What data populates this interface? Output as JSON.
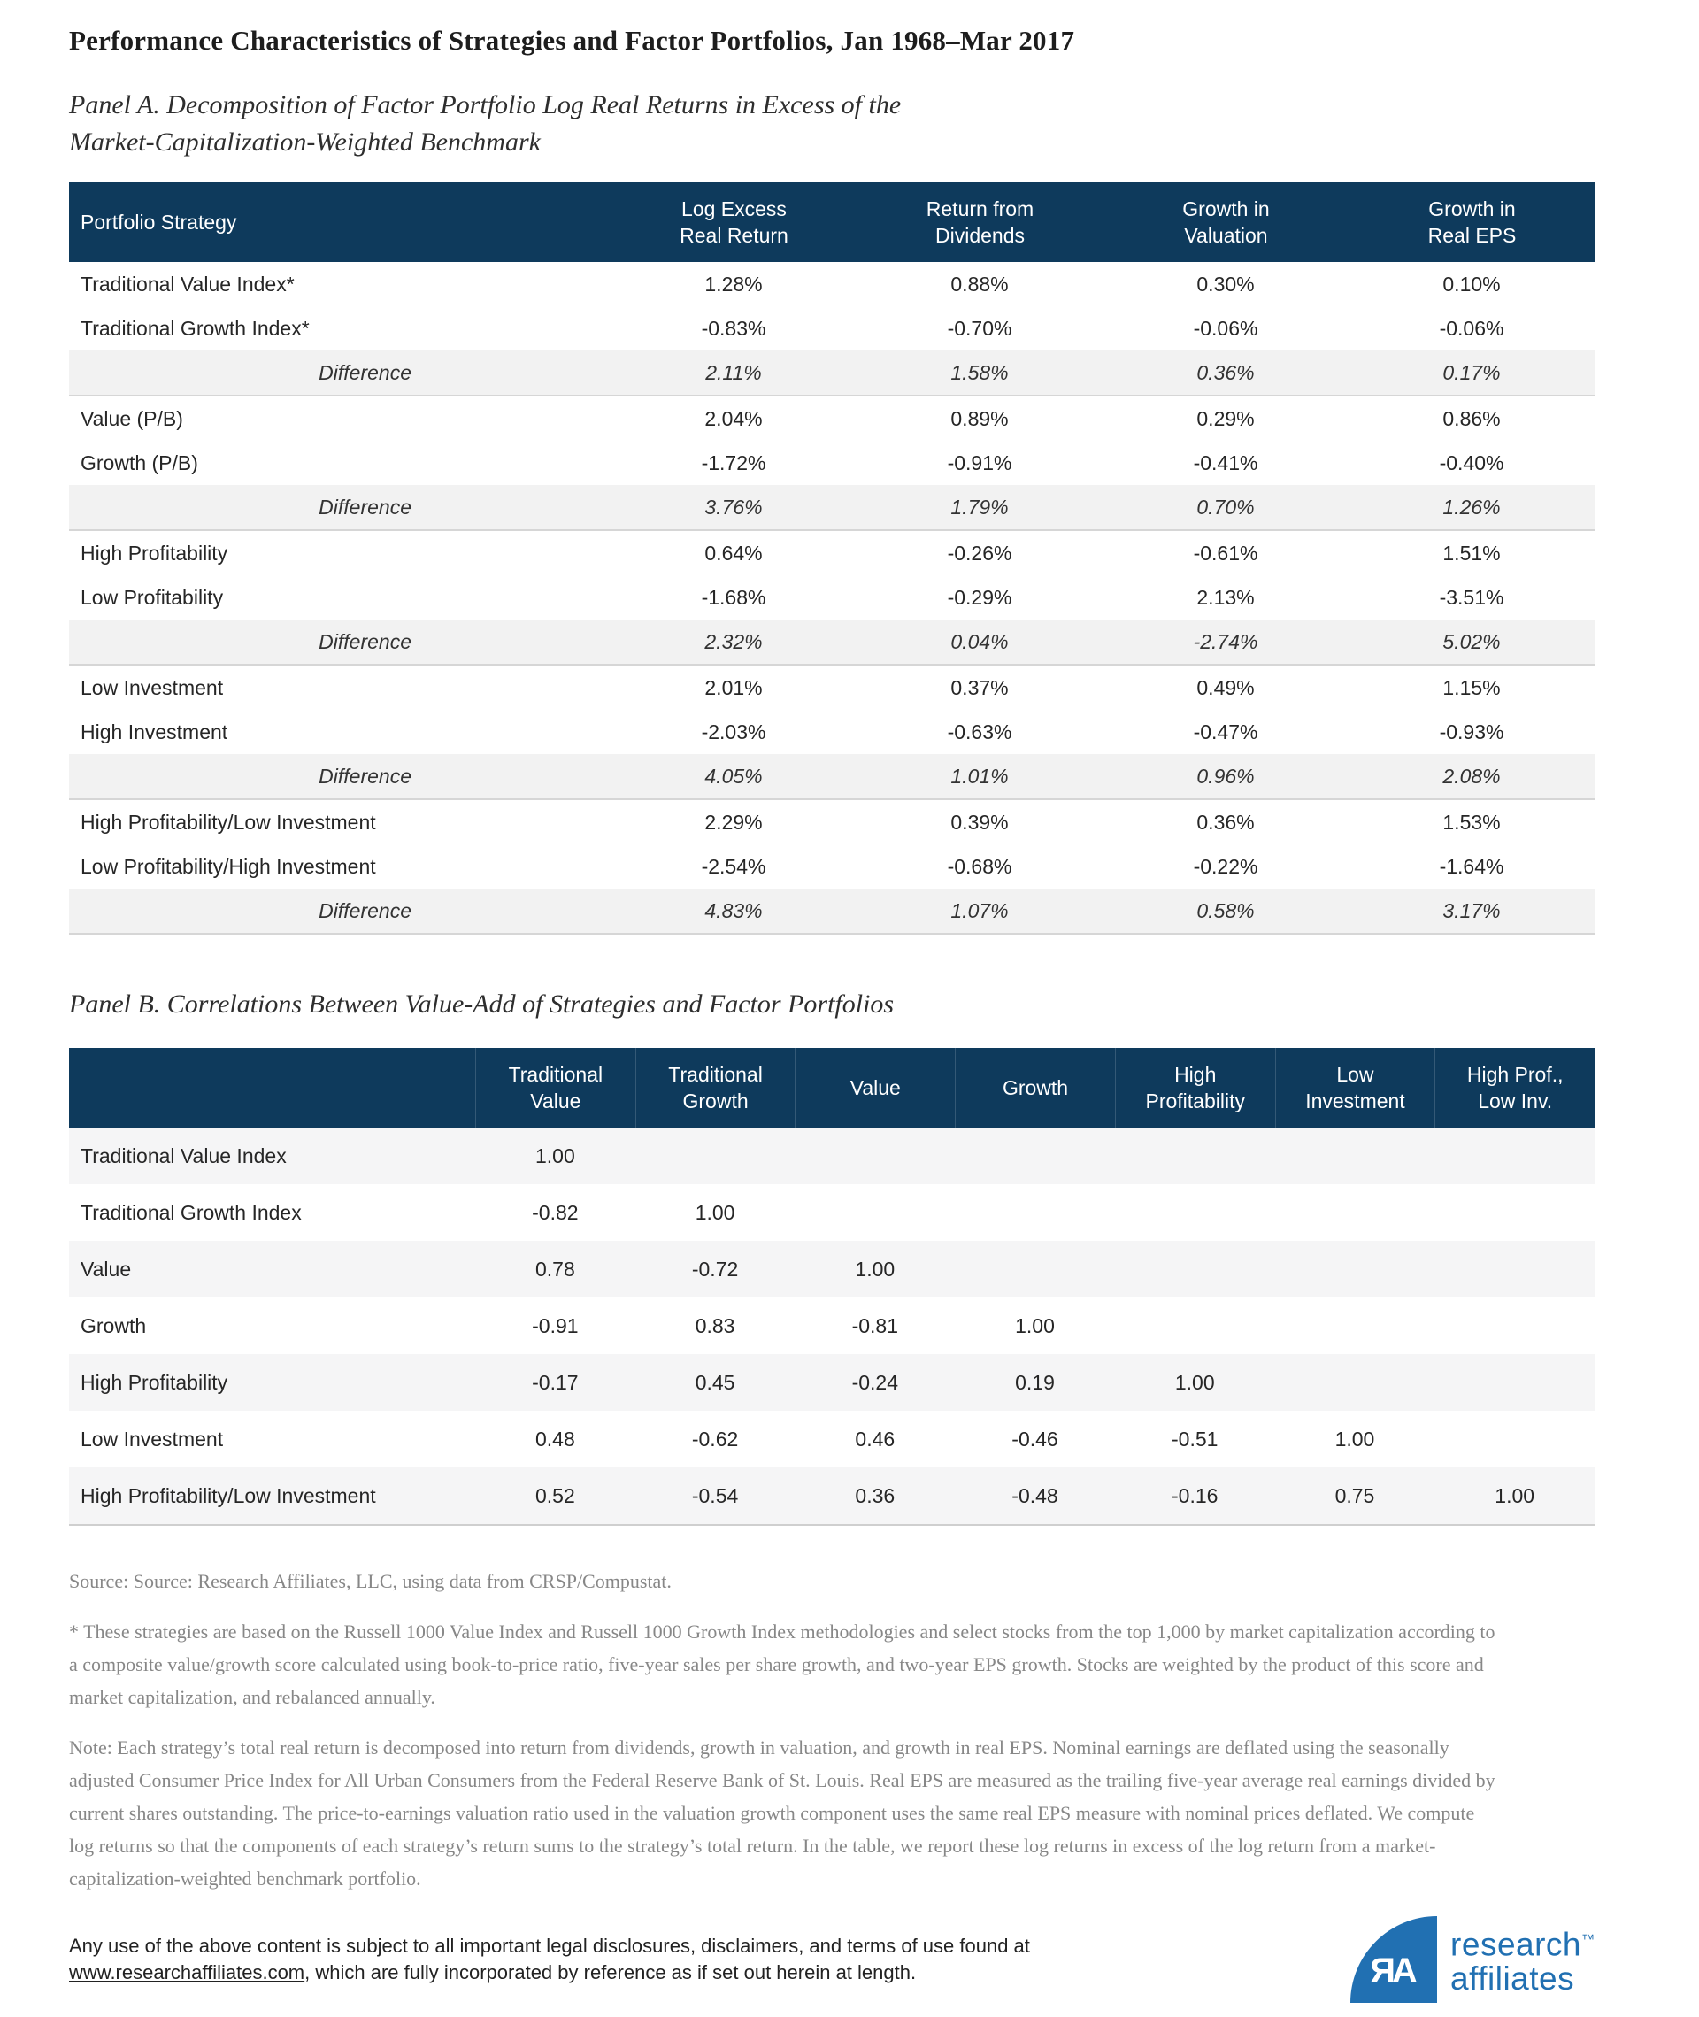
{
  "page": {
    "title": "Performance Characteristics of Strategies and Factor Portfolios, Jan 1968–Mar 2017"
  },
  "panel_a": {
    "heading_line1": "Panel A. Decomposition of Factor Portfolio Log Real Returns in Excess of the",
    "heading_line2": "Market-Capitalization-Weighted Benchmark",
    "columns": [
      "Portfolio Strategy",
      "Log Excess\nReal Return",
      "Return from\nDividends",
      "Growth in\nValuation",
      "Growth in\nReal EPS"
    ],
    "rows": [
      {
        "type": "data",
        "label": "Traditional Value Index*",
        "values": [
          "1.28%",
          "0.88%",
          "0.30%",
          "0.10%"
        ]
      },
      {
        "type": "data",
        "label": "Traditional Growth Index*",
        "values": [
          "-0.83%",
          "-0.70%",
          "-0.06%",
          "-0.06%"
        ]
      },
      {
        "type": "diff",
        "label": "Difference",
        "values": [
          "2.11%",
          "1.58%",
          "0.36%",
          "0.17%"
        ]
      },
      {
        "type": "data",
        "label": "Value (P/B)",
        "values": [
          "2.04%",
          "0.89%",
          "0.29%",
          "0.86%"
        ]
      },
      {
        "type": "data",
        "label": "Growth (P/B)",
        "values": [
          "-1.72%",
          "-0.91%",
          "-0.41%",
          "-0.40%"
        ]
      },
      {
        "type": "diff",
        "label": "Difference",
        "values": [
          "3.76%",
          "1.79%",
          "0.70%",
          "1.26%"
        ]
      },
      {
        "type": "data",
        "label": "High Profitability",
        "values": [
          "0.64%",
          "-0.26%",
          "-0.61%",
          "1.51%"
        ]
      },
      {
        "type": "data",
        "label": "Low Profitability",
        "values": [
          "-1.68%",
          "-0.29%",
          "2.13%",
          "-3.51%"
        ]
      },
      {
        "type": "diff",
        "label": "Difference",
        "values": [
          "2.32%",
          "0.04%",
          "-2.74%",
          "5.02%"
        ]
      },
      {
        "type": "data",
        "label": "Low Investment",
        "values": [
          "2.01%",
          "0.37%",
          "0.49%",
          "1.15%"
        ]
      },
      {
        "type": "data",
        "label": "High Investment",
        "values": [
          "-2.03%",
          "-0.63%",
          "-0.47%",
          "-0.93%"
        ]
      },
      {
        "type": "diff",
        "label": "Difference",
        "values": [
          "4.05%",
          "1.01%",
          "0.96%",
          "2.08%"
        ]
      },
      {
        "type": "data",
        "label": "High Profitability/Low Investment",
        "values": [
          "2.29%",
          "0.39%",
          "0.36%",
          "1.53%"
        ]
      },
      {
        "type": "data",
        "label": "Low Profitability/High Investment",
        "values": [
          "-2.54%",
          "-0.68%",
          "-0.22%",
          "-1.64%"
        ]
      },
      {
        "type": "diff",
        "label": "Difference",
        "values": [
          "4.83%",
          "1.07%",
          "0.58%",
          "3.17%"
        ]
      }
    ]
  },
  "panel_b": {
    "heading": "Panel B. Correlations Between Value-Add of Strategies and Factor Portfolios",
    "columns": [
      "",
      "Traditional\nValue",
      "Traditional\nGrowth",
      "Value",
      "Growth",
      "High\nProfitability",
      "Low\nInvestment",
      "High Prof.,\nLow Inv."
    ],
    "rows": [
      {
        "label": "Traditional Value Index",
        "values": [
          "1.00",
          "",
          "",
          "",
          "",
          "",
          ""
        ]
      },
      {
        "label": "Traditional Growth Index",
        "values": [
          "-0.82",
          "1.00",
          "",
          "",
          "",
          "",
          ""
        ]
      },
      {
        "label": "Value",
        "values": [
          "0.78",
          "-0.72",
          "1.00",
          "",
          "",
          "",
          ""
        ]
      },
      {
        "label": "Growth",
        "values": [
          "-0.91",
          "0.83",
          "-0.81",
          "1.00",
          "",
          "",
          ""
        ]
      },
      {
        "label": "High Profitability",
        "values": [
          "-0.17",
          "0.45",
          "-0.24",
          "0.19",
          "1.00",
          "",
          ""
        ]
      },
      {
        "label": "Low Investment",
        "values": [
          "0.48",
          "-0.62",
          "0.46",
          "-0.46",
          "-0.51",
          "1.00",
          ""
        ]
      },
      {
        "label": "High Profitability/Low Investment",
        "values": [
          "0.52",
          "-0.54",
          "0.36",
          "-0.48",
          "-0.16",
          "0.75",
          "1.00"
        ]
      }
    ]
  },
  "notes": {
    "source": "Source: Source: Research Affiliates, LLC, using data from CRSP/Compustat.",
    "asterisk": "* These strategies are based on the Russell 1000 Value Index and Russell 1000 Growth Index methodologies and select stocks from the top 1,000 by market capitalization according to a composite value/growth score calculated using book-to-price ratio, five-year sales per share growth, and two-year EPS growth. Stocks are weighted by the product of this score and market capitalization, and rebalanced annually.",
    "note": "Note: Each strategy’s total real return is decomposed into return from dividends, growth in valuation, and growth in real EPS. Nominal earnings are deflated using the seasonally adjusted Consumer Price Index for All Urban Consumers from the Federal Reserve Bank of St. Louis. Real EPS are measured as the trailing five-year average real earnings divided by current shares outstanding. The price-to-earnings valuation ratio used in the valuation growth component uses the same real EPS measure with nominal prices deflated. We compute log returns so that the components of each strategy’s return sums to the strategy’s total return. In the table, we report these log returns in excess of the log return from a market-capitalization-weighted benchmark portfolio."
  },
  "legal": {
    "line1": "Any use of the above content is subject to all important legal disclosures, disclaimers, and terms of use found at",
    "link": "www.researchaffiliates.com",
    "suffix": ", which are fully incorporated by reference as if set out herein at length."
  },
  "logo": {
    "monogram": "ЯA",
    "line1": "research",
    "line2": "affiliates",
    "trademark": "™"
  },
  "colors": {
    "header_navy": "#0e3a5c",
    "difference_row_gray": "#f2f2f2",
    "alternate_row_gray": "#f5f5f6",
    "brand_blue": "#2170b2"
  }
}
